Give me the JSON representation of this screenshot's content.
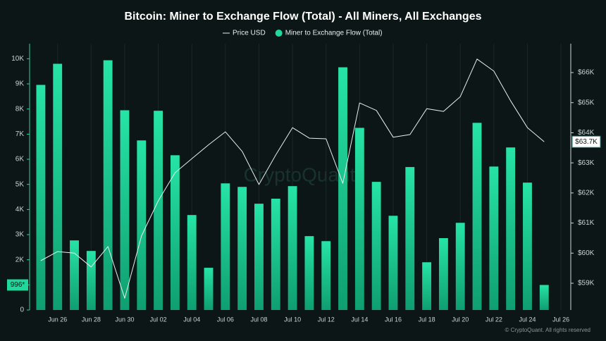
{
  "chart_data": {
    "type": "bar",
    "title": "Bitcoin: Miner to Exchange Flow (Total) - All Miners, All Exchanges",
    "watermark": "CryptoQuant",
    "footer": "© CryptoQuant. All rights reserved",
    "categories": [
      null,
      "Jun 26",
      null,
      "Jun 28",
      null,
      "Jun 30",
      null,
      "Jul 02",
      null,
      "Jul 04",
      null,
      "Jul 06",
      null,
      "Jul 08",
      null,
      "Jul 10",
      null,
      "Jul 12",
      null,
      "Jul 14",
      null,
      "Jul 16",
      null,
      "Jul 18",
      null,
      "Jul 20",
      null,
      "Jul 22",
      null,
      "Jul 24",
      null,
      "Jul 26"
    ],
    "series": [
      {
        "name": "Price USD",
        "type": "line",
        "axis": "y2",
        "color": "#e8eeee",
        "values": [
          59750,
          60050,
          60000,
          59540,
          60220,
          58500,
          60570,
          61740,
          62670,
          63140,
          63600,
          64030,
          63380,
          62280,
          63260,
          64170,
          63820,
          63800,
          62320,
          64990,
          64740,
          63850,
          63940,
          64800,
          64710,
          65200,
          66450,
          66050,
          65060,
          64170,
          63700,
          null
        ],
        "value_labels": [
          null,
          null,
          null,
          null,
          null,
          null,
          null,
          null,
          null,
          null,
          null,
          null,
          null,
          null,
          null,
          null,
          null,
          null,
          null,
          null,
          null,
          null,
          null,
          null,
          null,
          null,
          null,
          null,
          null,
          null,
          "$63.7K",
          null
        ]
      },
      {
        "name": "Miner to Exchange Flow (Total)",
        "type": "bar",
        "axis": "y",
        "color": "#1fd99b",
        "values": [
          8960,
          9800,
          2770,
          2350,
          9940,
          7950,
          6750,
          7930,
          6160,
          3780,
          1680,
          5040,
          4900,
          4230,
          4430,
          4930,
          2940,
          2740,
          9660,
          7250,
          5100,
          3750,
          5690,
          1900,
          2860,
          3470,
          7450,
          5710,
          6470,
          5070,
          996,
          null
        ],
        "value_labels": [
          null,
          null,
          null,
          null,
          null,
          null,
          null,
          null,
          null,
          null,
          null,
          null,
          null,
          null,
          null,
          null,
          null,
          null,
          null,
          null,
          null,
          null,
          null,
          null,
          null,
          null,
          null,
          null,
          null,
          null,
          "996*",
          null
        ]
      }
    ],
    "ylim": [
      0,
      10600
    ],
    "yticks": [
      0,
      {
        "value": 1000,
        "label": "1K"
      },
      {
        "value": 2000,
        "label": "2K"
      },
      {
        "value": 3000,
        "label": "3K"
      },
      {
        "value": 4000,
        "label": "4K"
      },
      {
        "value": 5000,
        "label": "5K"
      },
      {
        "value": 6000,
        "label": "6K"
      },
      {
        "value": 7000,
        "label": "7K"
      },
      {
        "value": 8000,
        "label": "8K"
      },
      {
        "value": 9000,
        "label": "9K"
      },
      {
        "value": 10000,
        "label": "10K"
      }
    ],
    "y2lim": [
      58110,
      66960
    ],
    "y2ticks": [
      {
        "value": 59000,
        "label": "$59K"
      },
      {
        "value": 60000,
        "label": "$60K"
      },
      {
        "value": 61000,
        "label": "$61K"
      },
      {
        "value": 62000,
        "label": "$62K"
      },
      {
        "value": 63000,
        "label": "$63K"
      },
      {
        "value": 64000,
        "label": "$64K"
      },
      {
        "value": 65000,
        "label": "$65K"
      },
      {
        "value": 66000,
        "label": "$66K"
      }
    ],
    "grid": true,
    "legend": "top"
  }
}
